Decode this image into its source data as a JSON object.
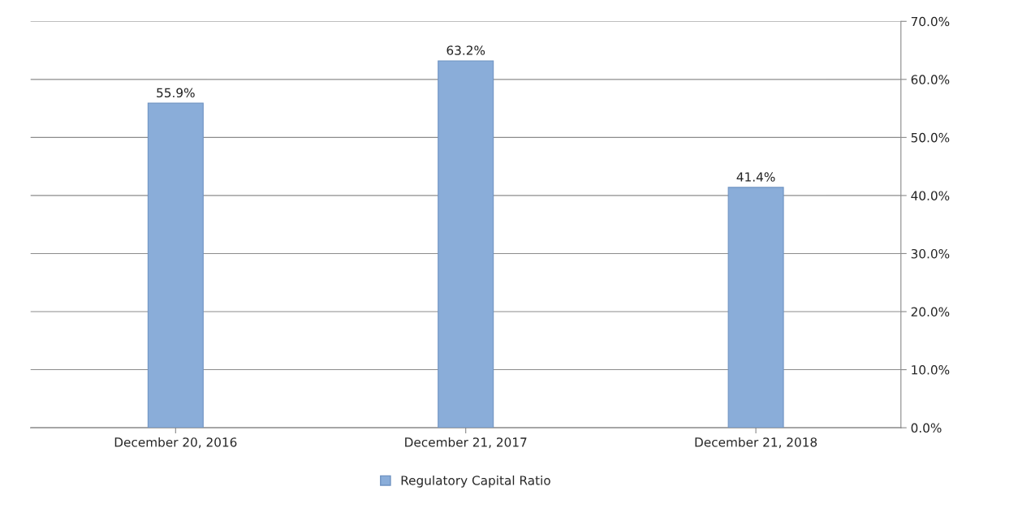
{
  "chart_data": {
    "type": "bar",
    "categories": [
      "December 20, 2016",
      "December 21, 2017",
      "December 21, 2018"
    ],
    "series": [
      {
        "name": "Regulatory Capital Ratio",
        "color": "#8aadd9",
        "values": [
          55.9,
          63.2,
          41.4
        ],
        "value_labels": [
          "55.9%",
          "63.2%",
          "41.4%"
        ]
      }
    ],
    "ylim": [
      0,
      70
    ],
    "yticks": [
      {
        "value": 0,
        "label": "0.0%"
      },
      {
        "value": 10,
        "label": "10.0%"
      },
      {
        "value": 20,
        "label": "20.0%"
      },
      {
        "value": 30,
        "label": "30.0%"
      },
      {
        "value": 40,
        "label": "40.0%"
      },
      {
        "value": 50,
        "label": "50.0%"
      },
      {
        "value": 60,
        "label": "60.0%"
      },
      {
        "value": 70,
        "label": "70.0%"
      }
    ],
    "grid": "y",
    "legend": "bottom"
  }
}
